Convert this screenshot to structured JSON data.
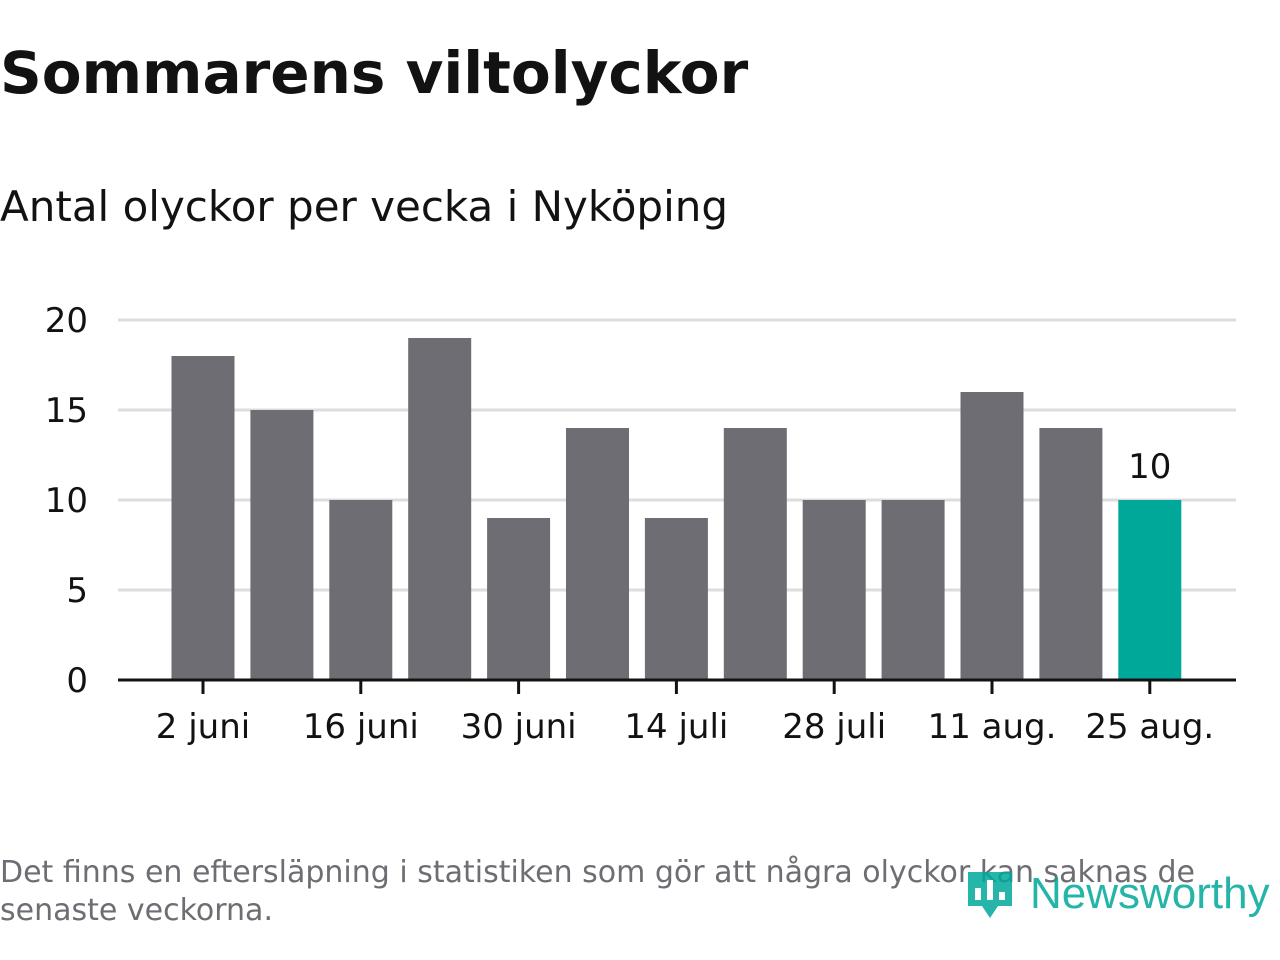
{
  "title": "Sommarens viltolyckor",
  "subtitle": "Antal olyckor per vecka i Nyköping",
  "footnote": "Det finns en eftersläpning i statistiken som gör att några olyckor kan saknas de senaste veckorna.",
  "brand": {
    "name": "Newsworthy",
    "icon": "newsworthy-logo-icon"
  },
  "colors": {
    "bar": "#6e6d73",
    "highlight": "#00a89a",
    "grid": "#dddddd",
    "axis": "#121212",
    "text": "#121212",
    "muted": "#6e6d73"
  },
  "chart_data": {
    "type": "bar",
    "title": "Sommarens viltolyckor",
    "subtitle": "Antal olyckor per vecka i Nyköping",
    "xlabel": "",
    "ylabel": "",
    "grid": true,
    "ylim": [
      0,
      20
    ],
    "yticks": [
      0,
      5,
      10,
      15,
      20
    ],
    "xtick_labels": [
      {
        "index": 0,
        "label": "2 juni"
      },
      {
        "index": 2,
        "label": "16 juni"
      },
      {
        "index": 4,
        "label": "30 juni"
      },
      {
        "index": 6,
        "label": "14 juli"
      },
      {
        "index": 8,
        "label": "28 juli"
      },
      {
        "index": 10,
        "label": "11 aug."
      },
      {
        "index": 12,
        "label": "25 aug."
      }
    ],
    "values": [
      18,
      15,
      10,
      19,
      9,
      14,
      9,
      14,
      10,
      10,
      16,
      14,
      10
    ],
    "highlight_index": 12,
    "data_labels": [
      {
        "index": 12,
        "text": "10"
      }
    ]
  }
}
